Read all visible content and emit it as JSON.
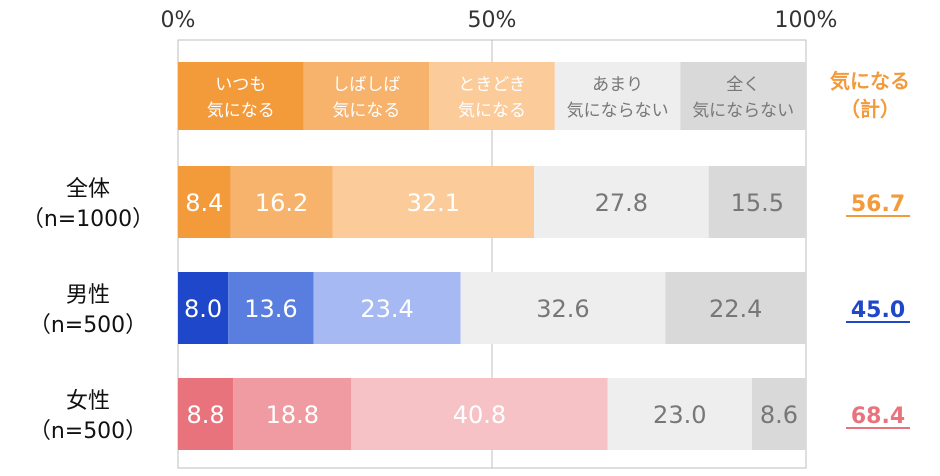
{
  "chart_data": {
    "type": "bar",
    "orientation": "horizontal",
    "stacked": true,
    "percent_scale": true,
    "xlim": [
      0,
      100
    ],
    "tick_labels": [
      "0%",
      "50%",
      "100%"
    ],
    "grid": true,
    "legend_placement": "top (header bar)",
    "legend": [
      {
        "line1": "いつも",
        "line2": "気になる",
        "color": "#f39a3b",
        "text_color": "#ffffff"
      },
      {
        "line1": "しばしば",
        "line2": "気になる",
        "color": "#f7b26c",
        "text_color": "#ffffff"
      },
      {
        "line1": "ときどき",
        "line2": "気になる",
        "color": "#fbcb9a",
        "text_color": "#ffffff"
      },
      {
        "line1": "あまり",
        "line2": "気にならない",
        "color": "#eeeeee",
        "text_color": "#777777"
      },
      {
        "line1": "全く",
        "line2": "気にならない",
        "color": "#d9d9d9",
        "text_color": "#777777"
      }
    ],
    "total_header": {
      "line1": "気になる",
      "line2": "（計）",
      "color": "#f39a3b"
    },
    "rows": [
      {
        "label1": "全体",
        "label2": "（n=1000）",
        "values": [
          8.4,
          16.2,
          32.1,
          27.8,
          15.5
        ],
        "labels": [
          "8.4",
          "16.2",
          "32.1",
          "27.8",
          "15.5"
        ],
        "colors": [
          "#f39a3b",
          "#f7b26c",
          "#fbcb9a",
          "#eeeeee",
          "#d9d9d9"
        ],
        "text_colors": [
          "#ffffff",
          "#ffffff",
          "#ffffff",
          "#777777",
          "#777777"
        ],
        "total": "56.7",
        "total_color": "#f39a3b"
      },
      {
        "label1": "男性",
        "label2": "（n=500）",
        "values": [
          8.0,
          13.6,
          23.4,
          32.6,
          22.4
        ],
        "labels": [
          "8.0",
          "13.6",
          "23.4",
          "32.6",
          "22.4"
        ],
        "colors": [
          "#1f47c9",
          "#5a7de0",
          "#a7b9f2",
          "#eeeeee",
          "#d9d9d9"
        ],
        "text_colors": [
          "#ffffff",
          "#ffffff",
          "#ffffff",
          "#777777",
          "#777777"
        ],
        "total": "45.0",
        "total_color": "#1f47c9"
      },
      {
        "label1": "女性",
        "label2": "（n=500）",
        "values": [
          8.8,
          18.8,
          40.8,
          23.0,
          8.6
        ],
        "labels": [
          "8.8",
          "18.8",
          "40.8",
          "23.0",
          "8.6"
        ],
        "colors": [
          "#e9737d",
          "#f09ba2",
          "#f6c2c6",
          "#eeeeee",
          "#d9d9d9"
        ],
        "text_colors": [
          "#ffffff",
          "#ffffff",
          "#ffffff",
          "#777777",
          "#777777"
        ],
        "total": "68.4",
        "total_color": "#e9737d"
      }
    ]
  }
}
